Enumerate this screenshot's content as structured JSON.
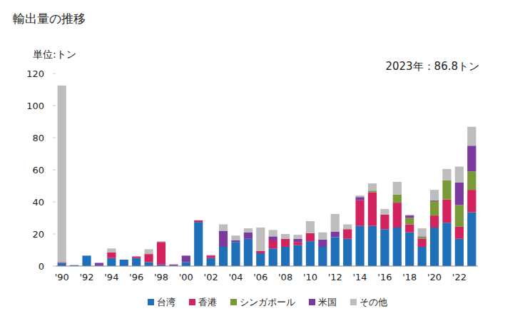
{
  "chart_data": {
    "type": "bar",
    "title": "輸出量の推移",
    "subtitle": "単位:トン",
    "annotation": "2023年：86.8トン",
    "categories": [
      "'90",
      null,
      "'92",
      null,
      "'94",
      null,
      "'96",
      null,
      "'98",
      null,
      "'00",
      null,
      "'02",
      null,
      "'04",
      null,
      "'06",
      null,
      "'08",
      null,
      "'10",
      null,
      "'12",
      null,
      "'14",
      null,
      "'16",
      null,
      "'18",
      null,
      "'20",
      null,
      "'22",
      null
    ],
    "series": [
      {
        "name": "台湾",
        "color": "#1f6fb9",
        "values": [
          2,
          0.5,
          6.5,
          0.5,
          5,
          4,
          5,
          2.5,
          1,
          0.3,
          2.5,
          27.5,
          5,
          12,
          15,
          17,
          8,
          11,
          12,
          13,
          15.5,
          12,
          18,
          17,
          25,
          25,
          23,
          24,
          21,
          12,
          24,
          27,
          17,
          33.5
        ]
      },
      {
        "name": "香港",
        "color": "#d3235e",
        "values": [
          0.5,
          0,
          0,
          0,
          3.5,
          0,
          1,
          5,
          14,
          0,
          0,
          1,
          1.5,
          0,
          0,
          0,
          1.5,
          5,
          5,
          2,
          5,
          0,
          0,
          6,
          16,
          21,
          9,
          15.5,
          5,
          5,
          7.5,
          14.5,
          7.5,
          14
        ]
      },
      {
        "name": "シンガポール",
        "color": "#7a9a3a",
        "values": [
          0,
          0,
          0,
          0,
          0,
          0,
          0,
          0,
          0,
          0,
          0,
          0,
          0,
          0,
          0,
          0,
          0,
          0,
          0,
          0,
          0,
          0,
          0,
          0,
          0,
          1,
          0,
          5,
          4,
          1,
          9,
          12,
          13.5,
          11.5
        ]
      },
      {
        "name": "米国",
        "color": "#7b3a9e",
        "values": [
          0,
          0,
          0,
          1.5,
          0,
          0,
          0,
          0,
          0,
          0.7,
          4,
          0,
          0.3,
          10,
          1,
          4,
          0,
          2.5,
          0,
          2,
          0,
          4.5,
          3.5,
          0,
          2,
          0,
          0,
          0,
          1.5,
          0.5,
          0.5,
          0,
          14,
          16
        ]
      },
      {
        "name": "その他",
        "color": "#bdbdbd",
        "values": [
          110,
          0.3,
          0,
          0,
          2.5,
          0,
          0,
          3,
          0.5,
          0,
          0,
          0,
          0,
          4,
          3,
          2.5,
          14.5,
          4,
          3,
          2.5,
          7.5,
          4.5,
          11,
          3,
          1,
          4.5,
          3.5,
          8,
          0.5,
          5,
          6.5,
          7,
          10,
          11.8
        ]
      }
    ],
    "ylim": [
      0,
      120
    ],
    "yticks": [
      0,
      20,
      40,
      60,
      80,
      100,
      120
    ],
    "stacked": true,
    "legend": "bottom",
    "grid": false
  }
}
